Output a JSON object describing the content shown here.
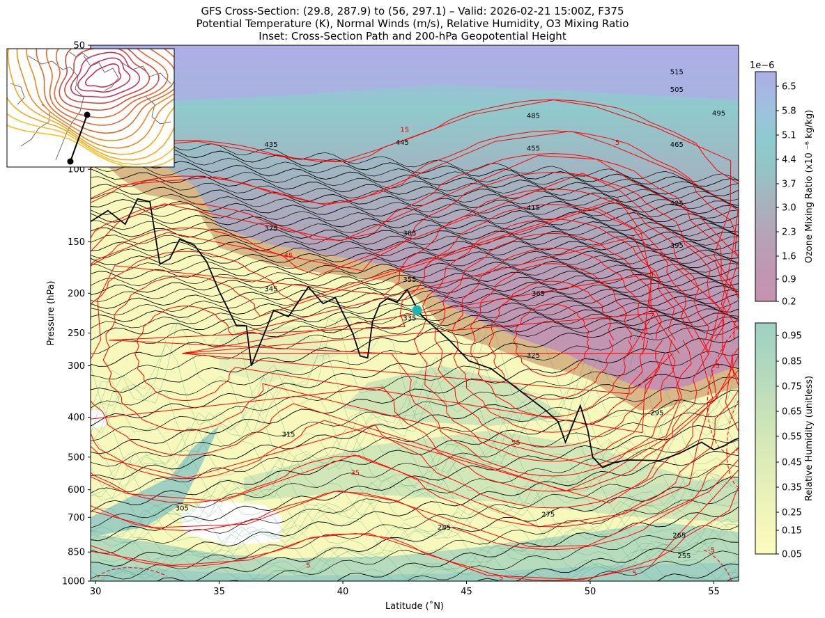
{
  "figure": {
    "title_lines": [
      "GFS Cross-Section: (29.8, 287.9) to (56, 297.1) – Valid: 2026-02-21 15:00Z, F375",
      "Potential Temperature (K), Normal Winds (m/s), Relative Humidity, O3 Mixing Ratio",
      "Inset: Cross-Section Path and 200-hPa Geopotential Height"
    ]
  },
  "chart_data": {
    "type": "heatmap",
    "xlabel": "Latitude (˚N)",
    "ylabel": "Pressure (hPa)",
    "xlim": [
      29.8,
      56
    ],
    "ylim": [
      1000,
      50
    ],
    "y_scale": "log",
    "x_ticks": [
      30,
      35,
      40,
      45,
      50,
      55
    ],
    "y_ticks": [
      1000,
      850,
      700,
      600,
      500,
      400,
      300,
      250,
      200,
      150,
      100,
      50
    ],
    "theta_contour_labels": [
      {
        "value": "515",
        "lat": 53.5,
        "p": 58
      },
      {
        "value": "505",
        "lat": 53.5,
        "p": 64
      },
      {
        "value": "495",
        "lat": 55.2,
        "p": 73
      },
      {
        "value": "485",
        "lat": 47.7,
        "p": 74
      },
      {
        "value": "465",
        "lat": 53.5,
        "p": 87
      },
      {
        "value": "455",
        "lat": 47.7,
        "p": 89
      },
      {
        "value": "445",
        "lat": 42.4,
        "p": 86
      },
      {
        "value": "435",
        "lat": 37.1,
        "p": 87
      },
      {
        "value": "425",
        "lat": 53.5,
        "p": 121
      },
      {
        "value": "415",
        "lat": 47.7,
        "p": 124
      },
      {
        "value": "395",
        "lat": 53.5,
        "p": 153
      },
      {
        "value": "385",
        "lat": 42.7,
        "p": 143
      },
      {
        "value": "375",
        "lat": 37.1,
        "p": 139
      },
      {
        "value": "365",
        "lat": 47.9,
        "p": 200
      },
      {
        "value": "355",
        "lat": 42.7,
        "p": 185
      },
      {
        "value": "345",
        "lat": 37.1,
        "p": 195
      },
      {
        "value": "335",
        "lat": 42.7,
        "p": 230
      },
      {
        "value": "325",
        "lat": 47.7,
        "p": 283
      },
      {
        "value": "315",
        "lat": 37.8,
        "p": 440
      },
      {
        "value": "305",
        "lat": 33.5,
        "p": 665
      },
      {
        "value": "295",
        "lat": 52.7,
        "p": 390
      },
      {
        "value": "285",
        "lat": 44.1,
        "p": 740
      },
      {
        "value": "275",
        "lat": 48.3,
        "p": 688
      },
      {
        "value": "265",
        "lat": 53.6,
        "p": 774
      },
      {
        "value": "255",
        "lat": 53.8,
        "p": 867
      }
    ],
    "wind_contour_labels": [
      {
        "value": "15",
        "lat": 42.5,
        "p": 80
      },
      {
        "value": "5",
        "lat": 51.1,
        "p": 86
      },
      {
        "value": "45",
        "lat": 37.8,
        "p": 162
      },
      {
        "value": "55",
        "lat": 47.0,
        "p": 460
      },
      {
        "value": "35",
        "lat": 40.5,
        "p": 545
      },
      {
        "value": "5",
        "lat": 38.6,
        "p": 914
      },
      {
        "value": "5",
        "lat": 46.4,
        "p": 980
      },
      {
        "value": "5",
        "lat": 51.8,
        "p": 956
      },
      {
        "value": "-5",
        "lat": 55.1,
        "p": 300
      },
      {
        "value": "-5",
        "lat": 54.9,
        "p": 840
      }
    ],
    "tropopause_path": [
      [
        29.8,
        134
      ],
      [
        30.5,
        126
      ],
      [
        31.2,
        136
      ],
      [
        31.7,
        118
      ],
      [
        32.2,
        120
      ],
      [
        32.6,
        170
      ],
      [
        33.0,
        165
      ],
      [
        33.4,
        148
      ],
      [
        34.0,
        153
      ],
      [
        34.5,
        168
      ],
      [
        35.0,
        198
      ],
      [
        35.7,
        240
      ],
      [
        36.1,
        240
      ],
      [
        36.3,
        300
      ],
      [
        37.2,
        220
      ],
      [
        37.8,
        228
      ],
      [
        38.6,
        193
      ],
      [
        39.2,
        212
      ],
      [
        39.7,
        205
      ],
      [
        40.4,
        250
      ],
      [
        40.7,
        284
      ],
      [
        41.0,
        287
      ],
      [
        41.2,
        234
      ],
      [
        41.5,
        212
      ],
      [
        41.8,
        206
      ],
      [
        42.2,
        210
      ],
      [
        42.6,
        196
      ],
      [
        43.0,
        218
      ],
      [
        43.2,
        227
      ],
      [
        44.3,
        260
      ],
      [
        45.1,
        292
      ],
      [
        46.0,
        305
      ],
      [
        47.3,
        350
      ],
      [
        48.2,
        385
      ],
      [
        48.7,
        410
      ],
      [
        49.0,
        460
      ],
      [
        49.2,
        430
      ],
      [
        49.6,
        375
      ],
      [
        49.9,
        430
      ],
      [
        50.1,
        500
      ],
      [
        50.5,
        530
      ],
      [
        51.0,
        515
      ],
      [
        51.5,
        508
      ],
      [
        52.8,
        510
      ],
      [
        53.6,
        490
      ],
      [
        54.5,
        460
      ],
      [
        55.0,
        480
      ],
      [
        55.4,
        470
      ],
      [
        55.8,
        455
      ],
      [
        56.0,
        450
      ]
    ],
    "marker": {
      "lat": 43.0,
      "p": 220,
      "color": "#1cb4b4"
    },
    "colorbars": [
      {
        "label": "Ozone Mixing Ratio (x10 ⁻⁶ kg/kg)",
        "scale_label": "1e−6",
        "ticks": [
          "6.5",
          "5.8",
          "5.1",
          "4.4",
          "3.7",
          "3.0",
          "2.3",
          "1.6",
          "0.9",
          "0.2"
        ],
        "colors": [
          "#aeaee6",
          "#a0bfe0",
          "#8ecbd0",
          "#94c4c6",
          "#a7b2be",
          "#b5a4b8",
          "#c097b4",
          "#c692ae"
        ]
      },
      {
        "label": "Relative Humidity (unitless)",
        "ticks": [
          "0.95",
          "0.85",
          "0.75",
          "0.65",
          "0.55",
          "0.45",
          "0.35",
          "0.25",
          "0.15",
          "0.05"
        ],
        "colors": [
          "#9fd0c2",
          "#a8d5c0",
          "#b4dabd",
          "#c2dfba",
          "#cde5b8",
          "#d9eab7",
          "#e3eeb8",
          "#ecf3b9",
          "#f5f7bb",
          "#fbfcbe"
        ]
      }
    ],
    "inset": {
      "path_start": "(29.8, 287.9)",
      "path_end": "(56, 297.1)",
      "contour_colors": [
        "#c23456",
        "#cf4a3c",
        "#dd6a2e",
        "#e98a22",
        "#f1a91e",
        "#f6c02a"
      ]
    },
    "colors": {
      "theta": "#000000",
      "wind": "#ff0000",
      "rh_lines": "#2e9a6a",
      "tropopause": "#000000",
      "stratosphere_tan": "#d9b887",
      "ozone_low": "#c692ae",
      "ozone_mid": "#8ecbd0",
      "ozone_high": "#aeaee6"
    }
  }
}
